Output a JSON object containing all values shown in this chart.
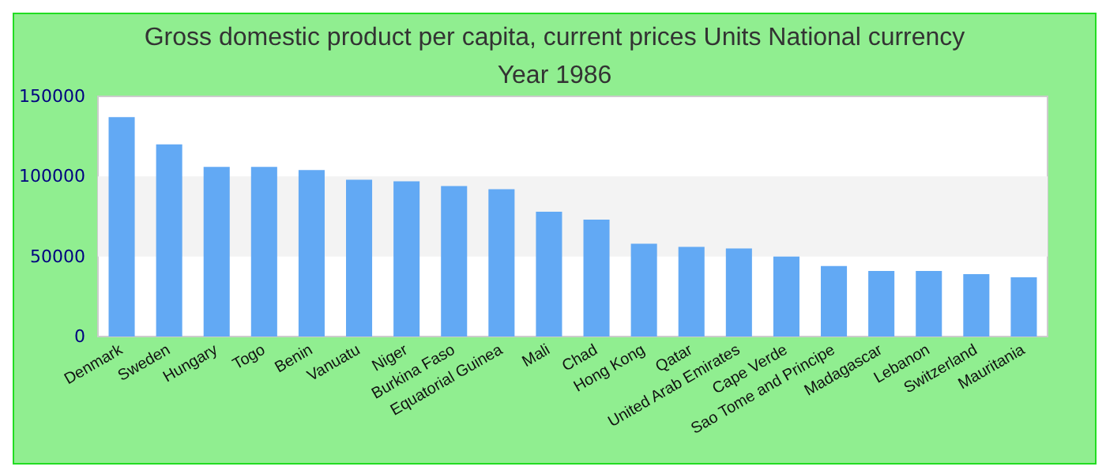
{
  "chart_data": {
    "type": "bar",
    "title": "Gross domestic product per capita, current prices Units National currency",
    "subtitle": "Year 1986",
    "categories": [
      "Denmark",
      "Sweden",
      "Hungary",
      "Togo",
      "Benin",
      "Vanuatu",
      "Niger",
      "Burkina Faso",
      "Equatorial Guinea",
      "Mali",
      "Chad",
      "Hong Kong",
      "Qatar",
      "United Arab Emirates",
      "Cape Verde",
      "Sao Tome and Principe",
      "Madagascar",
      "Lebanon",
      "Switzerland",
      "Mauritania"
    ],
    "values": [
      137000,
      120000,
      106000,
      106000,
      104000,
      98000,
      97000,
      94000,
      92000,
      78000,
      73000,
      58000,
      56000,
      55000,
      50000,
      44000,
      41000,
      41000,
      39000,
      37000
    ],
    "color": "#62a9f4",
    "ylim": [
      0,
      150000
    ],
    "yticks": [
      0,
      50000,
      100000,
      150000
    ],
    "bands": [
      {
        "axis": "y",
        "from": 50000,
        "to": 100000,
        "color": "#f3f3f3"
      }
    ]
  }
}
